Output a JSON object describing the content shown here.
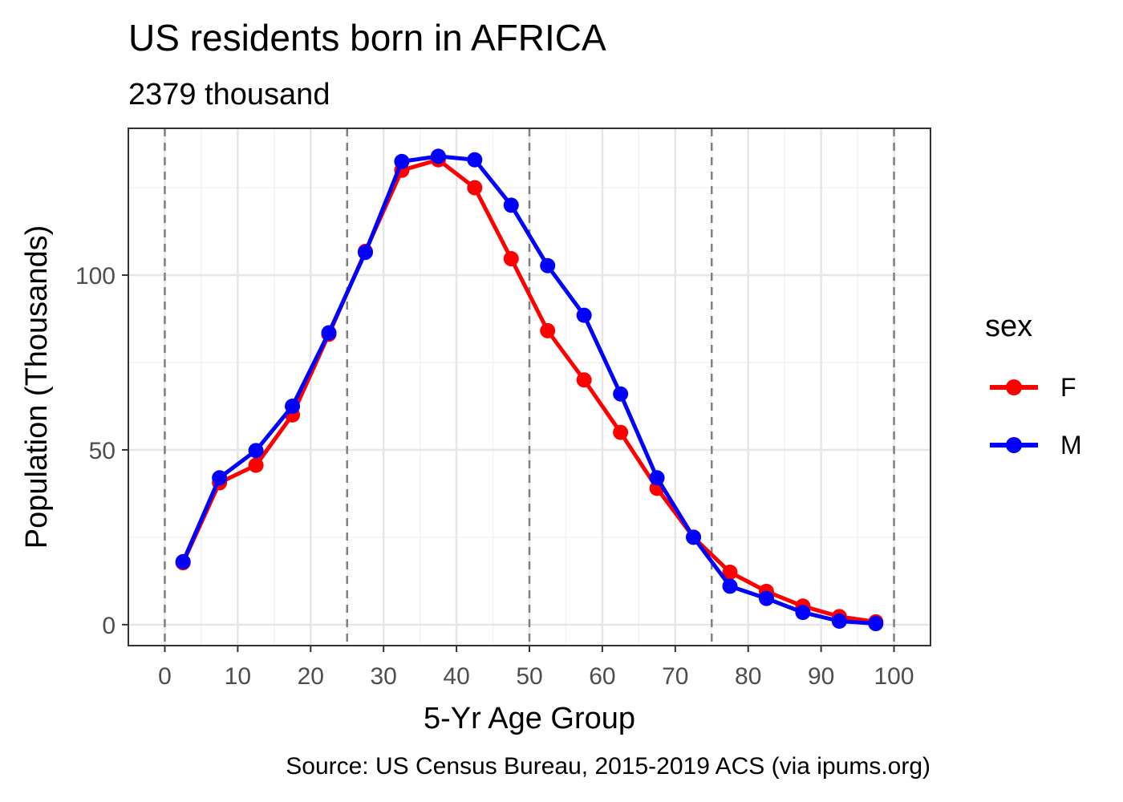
{
  "chart_data": {
    "type": "line",
    "title": "US residents born in AFRICA",
    "subtitle": "2379 thousand",
    "xlabel": "5-Yr Age Group",
    "ylabel": "Population (Thousands)",
    "caption": "Source: US Census Bureau, 2015-2019 ACS (via ipums.org)",
    "legend_title": "sex",
    "legend_position": "right",
    "grid": true,
    "xlim": [
      -5,
      105
    ],
    "ylim": [
      -6,
      142
    ],
    "x_ticks": [
      0,
      10,
      20,
      30,
      40,
      50,
      60,
      70,
      80,
      90,
      100
    ],
    "y_ticks": [
      0,
      50,
      100
    ],
    "vlines": [
      0,
      25,
      50,
      75,
      100
    ],
    "x": [
      2.5,
      7.5,
      12.5,
      17.5,
      22.5,
      27.5,
      32.5,
      37.5,
      42.5,
      47.5,
      52.5,
      57.5,
      62.5,
      67.5,
      72.5,
      77.5,
      82.5,
      87.5,
      92.5,
      97.5
    ],
    "series": [
      {
        "name": "F",
        "color": "#ff0000",
        "values": [
          17.7,
          40.6,
          45.6,
          60.0,
          83.1,
          106.8,
          130.0,
          133.0,
          125.0,
          104.7,
          84.1,
          70.0,
          55.0,
          39.0,
          25.0,
          15.0,
          9.5,
          5.3,
          2.3,
          0.8
        ]
      },
      {
        "name": "M",
        "color": "#0000ff",
        "values": [
          18.0,
          42.0,
          49.8,
          62.5,
          83.5,
          106.5,
          132.5,
          134.0,
          133.0,
          120.0,
          102.7,
          88.5,
          66.0,
          42.0,
          25.0,
          11.0,
          7.5,
          3.5,
          1.0,
          0.3
        ]
      }
    ]
  }
}
